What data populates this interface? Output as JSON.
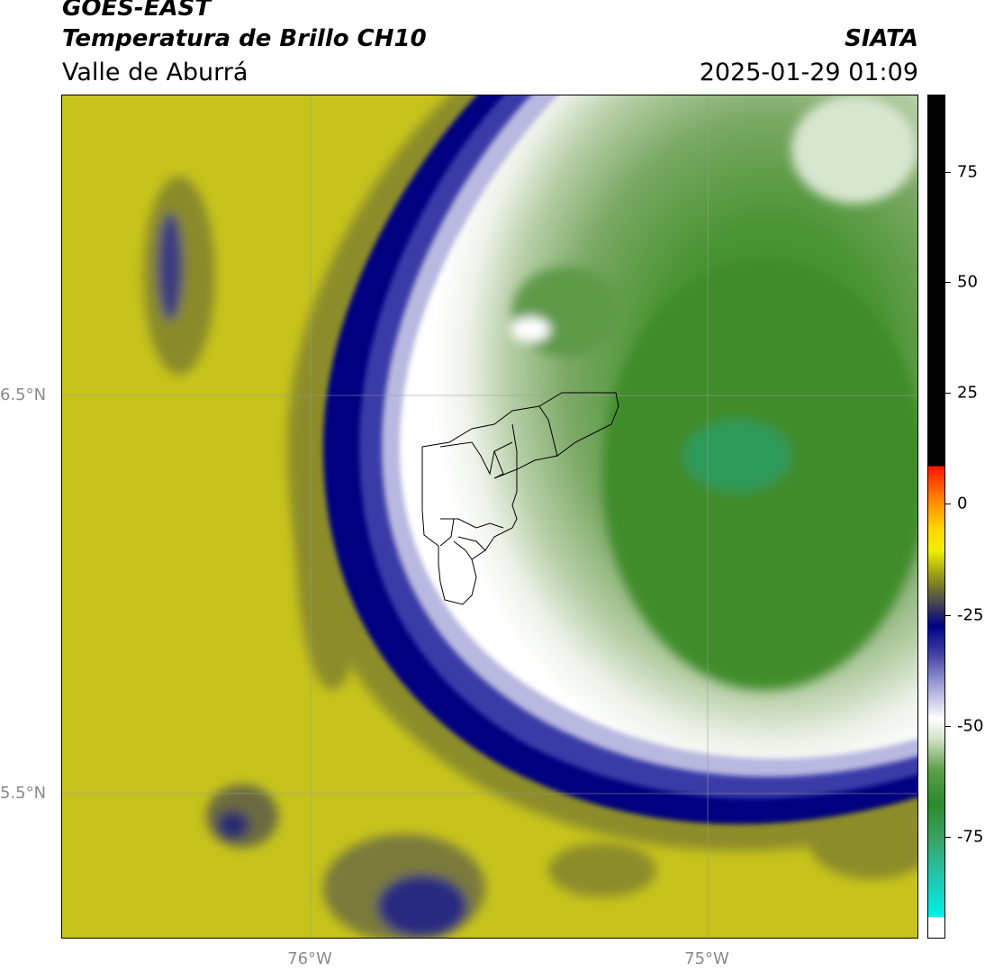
{
  "header": {
    "title_line1": "GOES-EAST",
    "title_line2": "Temperatura de Brillo CH10",
    "brand": "SIATA",
    "subtitle": "Valle de Aburrá",
    "datetime": "2025-01-29 01:09"
  },
  "map": {
    "lat_labels": [
      "6.5°N",
      "5.5°N"
    ],
    "lon_labels": [
      "76°W",
      "75°W"
    ],
    "colors": {
      "background": "#c6c31c",
      "olive": "#8c8c2c",
      "navy": "#000080",
      "cloud_light": "#d8e6d0",
      "cloud_green": "#6ea254",
      "cloud_dark": "#3b8a2a",
      "teal": "#2e9a5a"
    }
  },
  "colorbar": {
    "labels": [
      "75",
      "50",
      "25",
      "0",
      "-25",
      "-50",
      "-75"
    ]
  }
}
